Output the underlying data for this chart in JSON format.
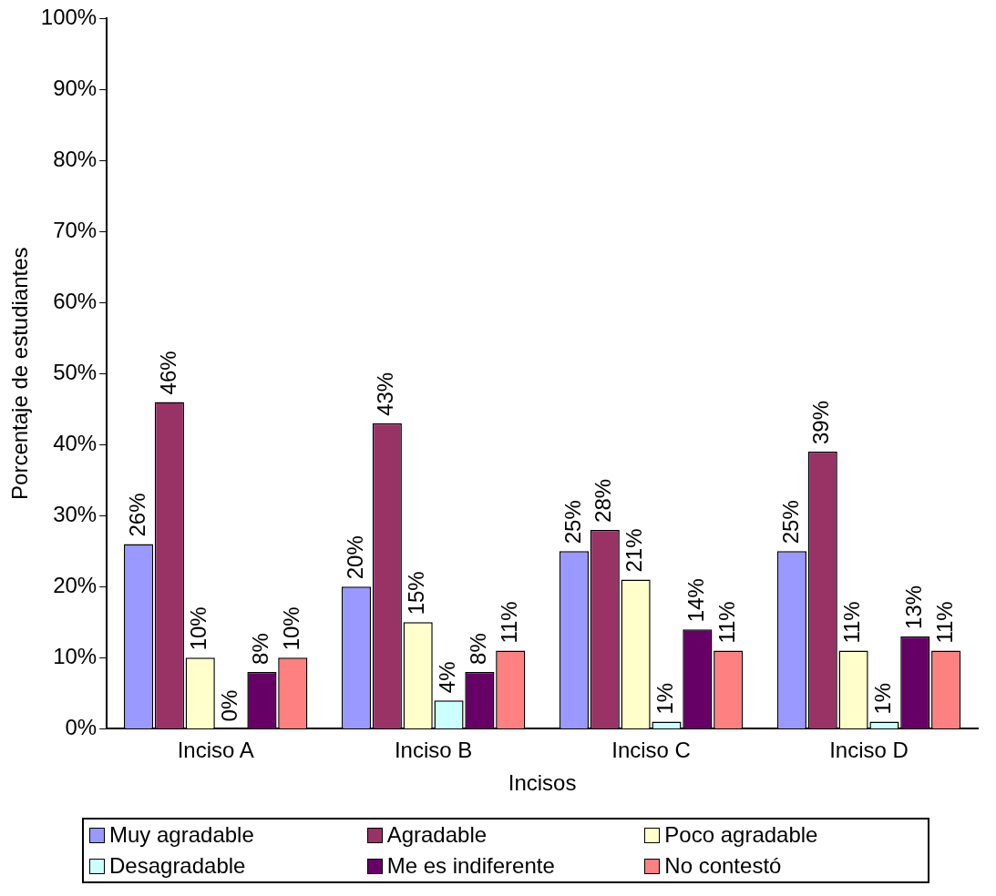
{
  "chart_data": {
    "type": "bar",
    "xlabel": "Incisos",
    "ylabel": "Porcentaje de estudiantes",
    "categories": [
      "Inciso A",
      "Inciso B",
      "Inciso C",
      "Inciso D"
    ],
    "series": [
      {
        "name": "Muy agradable",
        "color": "#9999ff",
        "values": [
          26,
          20,
          25,
          25
        ],
        "value_labels": [
          "26%",
          "20%",
          "25%",
          "25%"
        ]
      },
      {
        "name": "Agradable",
        "color": "#993366",
        "values": [
          46,
          43,
          28,
          39
        ],
        "value_labels": [
          "46%",
          "43%",
          "28%",
          "39%"
        ]
      },
      {
        "name": "Poco agradable",
        "color": "#ffffcc",
        "values": [
          10,
          15,
          21,
          11
        ],
        "value_labels": [
          "10%",
          "15%",
          "21%",
          "11%"
        ]
      },
      {
        "name": "Desagradable",
        "color": "#ccffff",
        "values": [
          0,
          4,
          1,
          1
        ],
        "value_labels": [
          "0%",
          "4%",
          "1%",
          "1%"
        ]
      },
      {
        "name": "Me es indiferente",
        "color": "#660066",
        "values": [
          8,
          8,
          14,
          13
        ],
        "value_labels": [
          "8%",
          "8%",
          "14%",
          "13%"
        ]
      },
      {
        "name": "No contestó",
        "color": "#ff8080",
        "values": [
          10,
          11,
          11,
          11
        ],
        "value_labels": [
          "10%",
          "11%",
          "11%",
          "11%"
        ]
      }
    ],
    "ylim": [
      0,
      100
    ],
    "yticks": [
      {
        "value": 0,
        "label": "0%"
      },
      {
        "value": 10,
        "label": "10%"
      },
      {
        "value": 20,
        "label": "20%"
      },
      {
        "value": 30,
        "label": "30%"
      },
      {
        "value": 40,
        "label": "40%"
      },
      {
        "value": 50,
        "label": "50%"
      },
      {
        "value": 60,
        "label": "60%"
      },
      {
        "value": 70,
        "label": "70%"
      },
      {
        "value": 80,
        "label": "80%"
      },
      {
        "value": 90,
        "label": "90%"
      },
      {
        "value": 100,
        "label": "100%"
      }
    ],
    "grid": false,
    "legend": "bottom"
  }
}
